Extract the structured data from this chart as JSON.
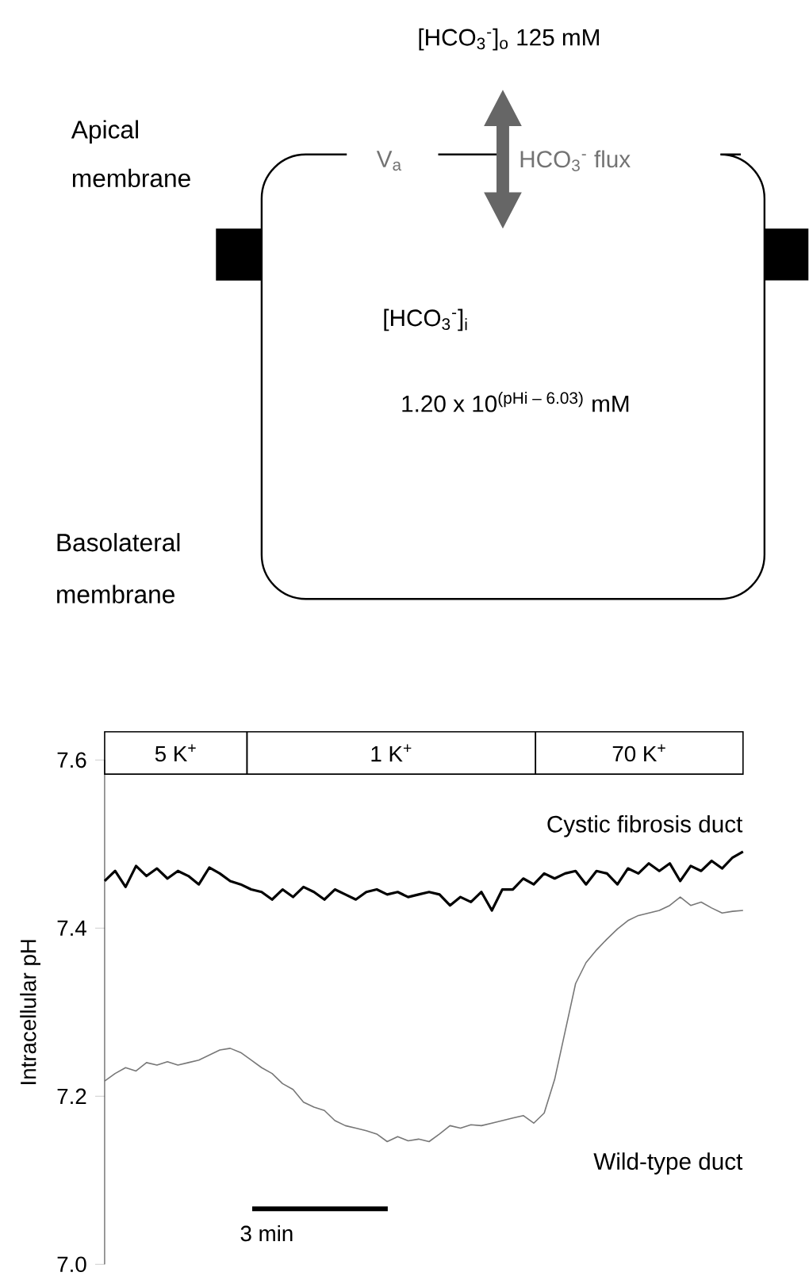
{
  "chart_data": {
    "type": "line",
    "ylabel": "Intracellular pH",
    "ylim": [
      7.0,
      7.6
    ],
    "yticks": [
      {
        "value": 7.0,
        "label": "7.0"
      },
      {
        "value": 7.2,
        "label": "7.2"
      },
      {
        "value": 7.4,
        "label": "7.4"
      },
      {
        "value": 7.6,
        "label": "7.6"
      }
    ],
    "categories": [
      null,
      null,
      null,
      null,
      null,
      null,
      null,
      null,
      null,
      null,
      null,
      null,
      null,
      null,
      null,
      null,
      null,
      null,
      null,
      null,
      null,
      null,
      null,
      null,
      null,
      null,
      null,
      null,
      null,
      null,
      null,
      null,
      null,
      null,
      null,
      null,
      null,
      null,
      null,
      null,
      null,
      null,
      null,
      null,
      null,
      null,
      null,
      null,
      null,
      null,
      null,
      null,
      null,
      null,
      null,
      null,
      null,
      null,
      null,
      null,
      null,
      null
    ],
    "tick_labels": "y",
    "series": [
      {
        "name": "Cystic fibrosis duct",
        "color": "#000000",
        "values": [
          7.456,
          7.468,
          7.449,
          7.474,
          7.462,
          7.471,
          7.459,
          7.468,
          7.462,
          7.452,
          7.472,
          7.465,
          7.456,
          7.452,
          7.446,
          7.443,
          7.434,
          7.446,
          7.437,
          7.449,
          7.443,
          7.434,
          7.446,
          7.44,
          7.434,
          7.443,
          7.446,
          7.44,
          7.443,
          7.437,
          7.44,
          7.443,
          7.44,
          7.427,
          7.437,
          7.431,
          7.443,
          7.421,
          7.446,
          7.446,
          7.459,
          7.452,
          7.465,
          7.459,
          7.465,
          7.468,
          7.452,
          7.468,
          7.465,
          7.452,
          7.471,
          7.465,
          7.477,
          7.468,
          7.477,
          7.456,
          7.474,
          7.468,
          7.48,
          7.471,
          7.484,
          7.491
        ]
      },
      {
        "name": "Wild-type duct",
        "color": "#777777",
        "values": [
          7.218,
          7.227,
          7.234,
          7.23,
          7.24,
          7.237,
          7.241,
          7.237,
          7.24,
          7.243,
          7.249,
          7.255,
          7.257,
          7.252,
          7.243,
          7.234,
          7.227,
          7.215,
          7.208,
          7.193,
          7.187,
          7.183,
          7.171,
          7.165,
          7.162,
          7.159,
          7.155,
          7.146,
          7.152,
          7.147,
          7.149,
          7.146,
          7.155,
          7.165,
          7.162,
          7.166,
          7.165,
          7.168,
          7.171,
          7.174,
          7.177,
          7.168,
          7.18,
          7.22,
          7.277,
          7.334,
          7.359,
          7.374,
          7.387,
          7.399,
          7.409,
          7.415,
          7.418,
          7.421,
          7.427,
          7.437,
          7.427,
          7.431,
          7.424,
          7.418,
          7.42,
          7.421
        ]
      }
    ],
    "annotations": [
      "[HCO$_{3}$$^{-}$]$_{o}$ 125 mM",
      "Apical membrane",
      "V$_{a}$",
      "HCO$_{3}$$^{-}$ flux",
      "[HCO$_{3}$$^{-}$]$_{i}$",
      "1.20 x 10$^{(pHi – 6.03)}$ mM",
      "Basolateral membrane",
      "5 K$^{+}$",
      "1 K$^{+}$",
      "70 K$^{+}$",
      "3 min"
    ]
  }
}
